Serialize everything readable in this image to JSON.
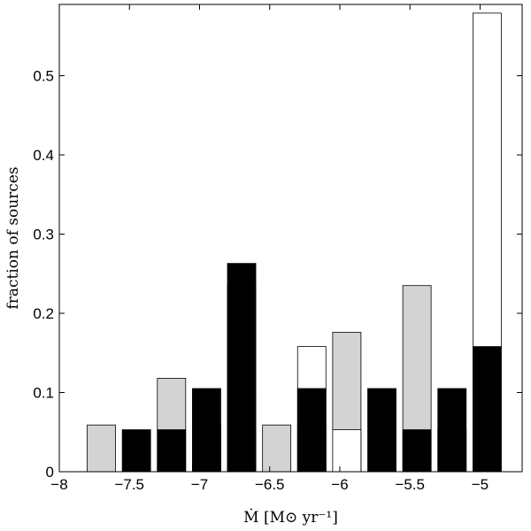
{
  "chart_data": {
    "type": "bar",
    "xlabel": "Ṁ [M⊙ yr⁻¹]",
    "ylabel": "fraction of sources",
    "xlim": [
      -8,
      -4.7
    ],
    "ylim": [
      0,
      0.59
    ],
    "xticks": [
      -8,
      -7.5,
      -7,
      -6.5,
      -6,
      -5.5,
      -5
    ],
    "xtick_labels": [
      "−8",
      "−7.5",
      "−7",
      "−6.5",
      "−6",
      "−5.5",
      "−5"
    ],
    "yticks": [
      0,
      0.1,
      0.2,
      0.3,
      0.4,
      0.5
    ],
    "ytick_labels": [
      "0",
      "0.1",
      "0.2",
      "0.3",
      "0.4",
      "0.5"
    ],
    "grid": false,
    "series": [
      {
        "color": "#d3d3d3",
        "bars": [
          {
            "x": -7.7,
            "y": 0.059
          },
          {
            "x": -7.2,
            "y": 0.118
          },
          {
            "x": -6.95,
            "y": 0.059
          },
          {
            "x": -6.7,
            "y": 0.235
          },
          {
            "x": -6.45,
            "y": 0.059
          },
          {
            "x": -6.2,
            "y": 0.059
          },
          {
            "x": -5.95,
            "y": 0.176
          },
          {
            "x": -5.45,
            "y": 0.235
          }
        ]
      },
      {
        "color": "#ffffff",
        "bars": [
          {
            "x": -6.95,
            "y": 0.053
          },
          {
            "x": -6.7,
            "y": 0.105
          },
          {
            "x": -6.2,
            "y": 0.158
          },
          {
            "x": -5.95,
            "y": 0.053
          },
          {
            "x": -5.2,
            "y": 0.053
          },
          {
            "x": -4.95,
            "y": 0.579
          }
        ]
      },
      {
        "color": "#000000",
        "bars": [
          {
            "x": -7.45,
            "y": 0.053
          },
          {
            "x": -7.2,
            "y": 0.053
          },
          {
            "x": -6.95,
            "y": 0.105
          },
          {
            "x": -6.7,
            "y": 0.263
          },
          {
            "x": -6.2,
            "y": 0.105
          },
          {
            "x": -5.7,
            "y": 0.105
          },
          {
            "x": -5.45,
            "y": 0.053
          },
          {
            "x": -5.2,
            "y": 0.105
          },
          {
            "x": -4.95,
            "y": 0.158
          }
        ]
      }
    ]
  }
}
